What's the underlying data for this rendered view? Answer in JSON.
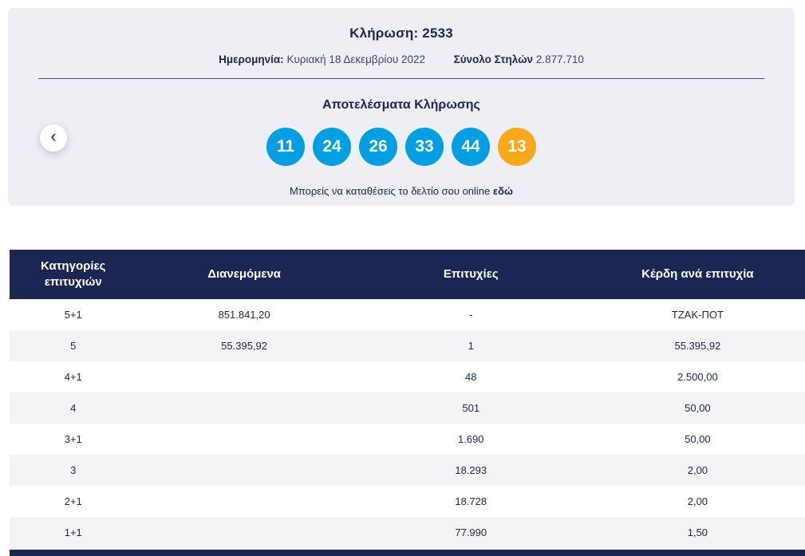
{
  "draw": {
    "title": "Κλήρωση: 2533",
    "date_label": "Ημερομηνία:",
    "date_value": "Κυριακή 18 Δεκεμβρίου 2022",
    "columns_label": "Σύνολο Στηλών",
    "columns_value": "2.877.710",
    "results_title": "Αποτελέσματα Κλήρωσης",
    "numbers": [
      "11",
      "24",
      "26",
      "33",
      "44"
    ],
    "joker": "13",
    "cta_text": "Μπορείς να καταθέσεις το δελτίο σου online",
    "cta_link": "εδώ"
  },
  "icons": {
    "chevron_left": "‹"
  },
  "table": {
    "headers": [
      "Κατηγορίες επιτυχιών",
      "Διανεμόμενα",
      "Επιτυχίες",
      "Κέρδη ανά επιτυχία"
    ],
    "rows": [
      {
        "category": "5+1",
        "distributed": "851.841,20",
        "wins": "-",
        "per_win": "ΤΖΑΚ-ΠΟΤ"
      },
      {
        "category": "5",
        "distributed": "55.395,92",
        "wins": "1",
        "per_win": "55.395,92"
      },
      {
        "category": "4+1",
        "distributed": "",
        "wins": "48",
        "per_win": "2.500,00"
      },
      {
        "category": "4",
        "distributed": "",
        "wins": "501",
        "per_win": "50,00"
      },
      {
        "category": "3+1",
        "distributed": "",
        "wins": "1.690",
        "per_win": "50,00"
      },
      {
        "category": "3",
        "distributed": "",
        "wins": "18.293",
        "per_win": "2,00"
      },
      {
        "category": "2+1",
        "distributed": "",
        "wins": "18.728",
        "per_win": "2,00"
      },
      {
        "category": "1+1",
        "distributed": "",
        "wins": "77.990",
        "per_win": "1,50"
      }
    ]
  },
  "colors": {
    "navy": "#1b2653",
    "blue": "#009fe3",
    "orange": "#f8a81b",
    "panel_bg": "#edeff5",
    "row_alt": "#f4f4f6"
  }
}
